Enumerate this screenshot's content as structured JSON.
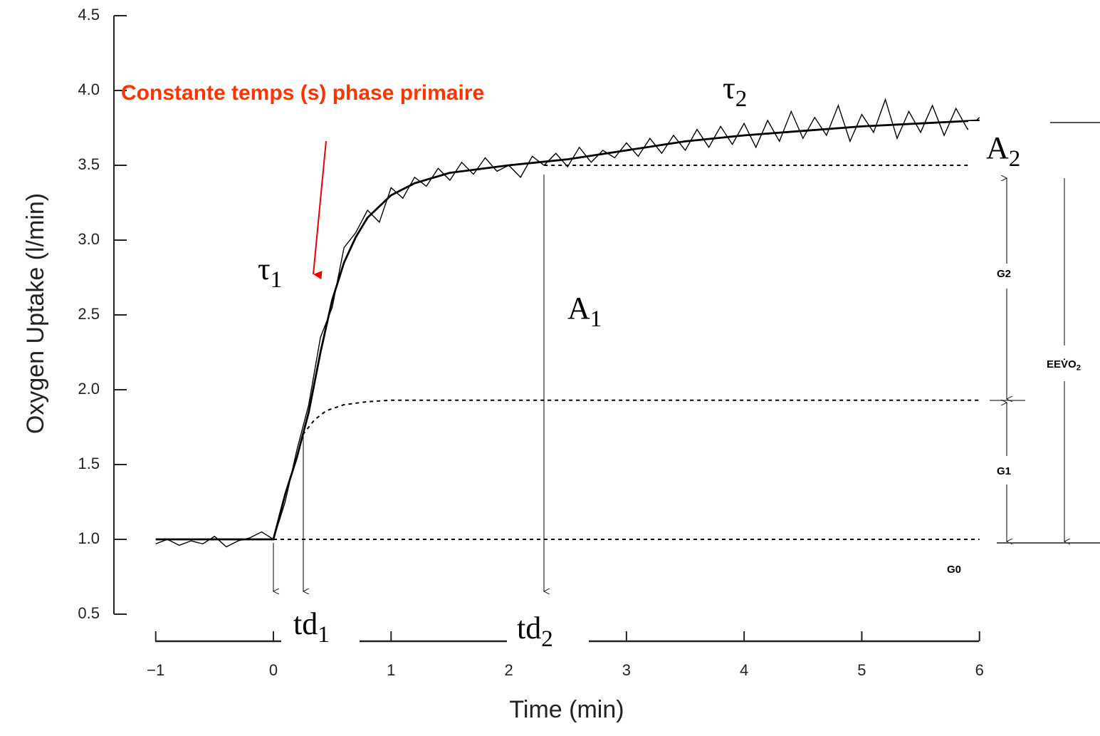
{
  "chart_data": {
    "type": "line",
    "title": "Constante temps (s) phase primaire",
    "xlabel": "Time (min)",
    "ylabel": "Oxygen Uptake (l/min)",
    "xlim": [
      -1,
      6
    ],
    "ylim": [
      0.5,
      4.5
    ],
    "xticks": [
      {
        "value": -1,
        "label": "−1"
      },
      0,
      1,
      2,
      3,
      4,
      5,
      6
    ],
    "yticks": [
      0.5,
      {
        "value": 1,
        "label": "1.0"
      },
      1.5,
      {
        "value": 2,
        "label": "2.0"
      },
      2.5,
      {
        "value": 3,
        "label": "3.0"
      },
      3.5,
      {
        "value": 4,
        "label": "4.0"
      },
      4.5
    ],
    "series": [
      {
        "color": "#000000",
        "style": "noisy",
        "x": [
          -1,
          -0.9,
          -0.8,
          -0.7,
          -0.6,
          -0.5,
          -0.4,
          -0.3,
          -0.2,
          -0.1,
          0,
          0.1,
          0.2,
          0.3,
          0.4,
          0.5,
          0.6,
          0.7,
          0.8,
          0.9,
          1,
          1.1,
          1.2,
          1.3,
          1.4,
          1.5,
          1.6,
          1.7,
          1.8,
          1.9,
          2,
          2.1,
          2.2,
          2.3,
          2.4,
          2.5,
          2.6,
          2.7,
          2.8,
          2.9,
          3,
          3.1,
          3.2,
          3.3,
          3.4,
          3.5,
          3.6,
          3.7,
          3.8,
          3.9,
          4,
          4.1,
          4.2,
          4.3,
          4.4,
          4.5,
          4.6,
          4.7,
          4.8,
          4.9,
          5,
          5.1,
          5.2,
          5.3,
          5.4,
          5.5,
          5.6,
          5.7,
          5.8,
          5.9,
          6
        ],
        "values": [
          0.97,
          1.0,
          0.96,
          0.99,
          0.97,
          1.02,
          0.95,
          0.99,
          1.01,
          1.05,
          1.0,
          1.25,
          1.6,
          1.9,
          2.35,
          2.55,
          2.95,
          3.05,
          3.2,
          3.12,
          3.35,
          3.28,
          3.42,
          3.36,
          3.48,
          3.4,
          3.52,
          3.44,
          3.55,
          3.46,
          3.5,
          3.42,
          3.56,
          3.5,
          3.58,
          3.49,
          3.62,
          3.52,
          3.6,
          3.55,
          3.65,
          3.56,
          3.68,
          3.58,
          3.7,
          3.6,
          3.74,
          3.62,
          3.76,
          3.64,
          3.78,
          3.62,
          3.8,
          3.66,
          3.86,
          3.68,
          3.82,
          3.7,
          3.9,
          3.66,
          3.84,
          3.72,
          3.94,
          3.68,
          3.86,
          3.72,
          3.9,
          3.7,
          3.88,
          3.74,
          3.82
        ]
      },
      {
        "color": "#000000",
        "style": "solid",
        "x": [
          -1,
          -0.5,
          0,
          0.1,
          0.2,
          0.3,
          0.4,
          0.5,
          0.6,
          0.7,
          0.8,
          1.0,
          1.2,
          1.5,
          2.0,
          2.5,
          3.0,
          3.5,
          4.0,
          4.5,
          5.0,
          5.5,
          6.0
        ],
        "values": [
          1.0,
          1.0,
          1.0,
          1.3,
          1.55,
          1.85,
          2.25,
          2.6,
          2.85,
          3.02,
          3.15,
          3.3,
          3.38,
          3.45,
          3.5,
          3.54,
          3.6,
          3.66,
          3.7,
          3.73,
          3.76,
          3.78,
          3.8
        ]
      },
      {
        "color": "#000000",
        "style": "dashed",
        "x": [
          0.25,
          0.35,
          0.45,
          0.6,
          0.8,
          1.0,
          1.5,
          6
        ],
        "values": [
          1.7,
          1.8,
          1.86,
          1.9,
          1.92,
          1.93,
          1.93,
          1.93
        ]
      },
      {
        "color": "#000000",
        "style": "dashed",
        "x": [
          0,
          6
        ],
        "values": [
          1.0,
          1.0
        ]
      },
      {
        "color": "#000000",
        "style": "dashed",
        "x": [
          2.3,
          6
        ],
        "values": [
          3.5,
          3.5
        ]
      }
    ],
    "annotations": [
      {
        "text": "τ",
        "sub": "2"
      },
      {
        "text": "τ",
        "sub": "1"
      },
      {
        "text": "A",
        "sub": "1"
      },
      {
        "text": "A",
        "sub": "2"
      },
      {
        "text": "td",
        "sub": "1"
      },
      {
        "text": "td",
        "sub": "2"
      },
      {
        "text": "G2"
      },
      {
        "text": "G1"
      },
      {
        "text": "G0"
      },
      {
        "text": "EEV̇O",
        "sub": "2"
      }
    ]
  }
}
